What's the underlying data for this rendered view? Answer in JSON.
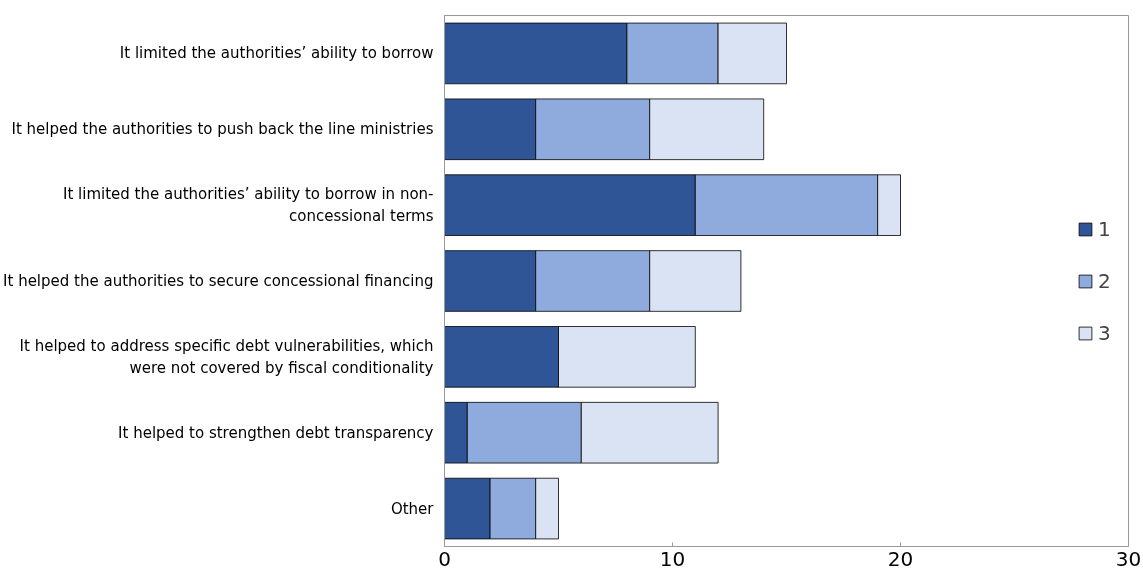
{
  "chart_data": {
    "type": "bar",
    "orientation": "horizontal",
    "stacked": true,
    "categories": [
      "It limited the authorities’ ability to borrow",
      "It helped the authorities to push back the line ministries",
      "It limited the authorities’ ability to borrow in non-concessional terms",
      "It helped the authorities to secure concessional financing",
      "It helped to address specific debt vulnerabilities, which were not covered by fiscal conditionality",
      "It helped to strengthen debt transparency",
      "Other"
    ],
    "series": [
      {
        "name": "1",
        "color": "#2f5597",
        "values": [
          8,
          4,
          11,
          4,
          5,
          1,
          2
        ]
      },
      {
        "name": "2",
        "color": "#8faadc",
        "values": [
          4,
          5,
          8,
          5,
          0,
          5,
          2
        ]
      },
      {
        "name": "3",
        "color": "#dae3f3",
        "values": [
          3,
          5,
          1,
          4,
          6,
          6,
          1
        ]
      }
    ],
    "xlim": [
      0,
      30
    ],
    "xticks": [
      0,
      10,
      20,
      30
    ],
    "grid": false,
    "legend": "right"
  }
}
